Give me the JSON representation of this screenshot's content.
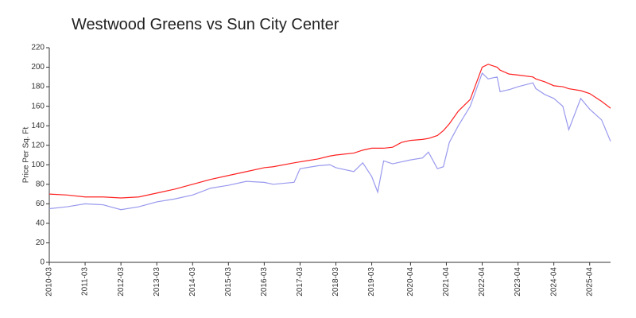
{
  "chart_data": {
    "type": "line",
    "title": "Westwood Greens vs Sun City Center",
    "y_label": "Price Per Sq. Ft",
    "x": [
      "2010-03",
      "2010-09",
      "2011-03",
      "2011-09",
      "2012-03",
      "2012-09",
      "2013-03",
      "2013-09",
      "2014-03",
      "2014-09",
      "2015-03",
      "2015-09",
      "2016-03",
      "2016-06",
      "2017-01",
      "2017-03",
      "2017-09",
      "2018-01",
      "2018-03",
      "2018-09",
      "2018-12",
      "2019-03",
      "2019-05",
      "2019-07",
      "2019-10",
      "2020-01",
      "2020-04",
      "2020-08",
      "2020-10",
      "2021-01",
      "2021-03",
      "2021-05",
      "2021-08",
      "2021-12",
      "2022-04",
      "2022-06",
      "2022-09",
      "2022-10",
      "2023-01",
      "2023-04",
      "2023-09",
      "2023-10",
      "2024-01",
      "2024-04",
      "2024-07",
      "2024-09",
      "2025-01",
      "2025-04",
      "2025-08",
      "2025-11"
    ],
    "series": [
      {
        "color": "#ff2020",
        "values": [
          70,
          69,
          67,
          67,
          66,
          67,
          71,
          75,
          80,
          85,
          89,
          93,
          97,
          98,
          102,
          103,
          106,
          109,
          110,
          112,
          115,
          117,
          117,
          117,
          118,
          123,
          125,
          126,
          127,
          130,
          135,
          142,
          155,
          167,
          200,
          203,
          200,
          197,
          193,
          192,
          190,
          188,
          185,
          181,
          180,
          178,
          176,
          173,
          165,
          158
        ]
      },
      {
        "color": "#9999ee",
        "values": [
          55,
          57,
          60,
          59,
          54,
          57,
          62,
          65,
          69,
          76,
          79,
          83,
          82,
          80,
          82,
          96,
          99,
          100,
          97,
          93,
          102,
          88,
          72,
          104,
          101,
          103,
          105,
          107,
          113,
          96,
          98,
          123,
          140,
          160,
          194,
          188,
          190,
          175,
          177,
          180,
          184,
          178,
          172,
          168,
          160,
          136,
          168,
          157,
          146,
          124
        ]
      }
    ],
    "xlim": [
      "2010-03",
      "2025-11"
    ],
    "xticks": [
      "2010-03",
      "2011-03",
      "2012-03",
      "2013-03",
      "2014-03",
      "2015-03",
      "2016-03",
      "2017-03",
      "2018-03",
      "2019-03",
      "2020-04",
      "2021-04",
      "2022-04",
      "2023-04",
      "2024-04",
      "2025-04"
    ],
    "ylim": [
      0,
      220
    ],
    "yticks": [
      0,
      20,
      40,
      60,
      80,
      100,
      120,
      140,
      160,
      180,
      200,
      220
    ],
    "grid": false
  }
}
